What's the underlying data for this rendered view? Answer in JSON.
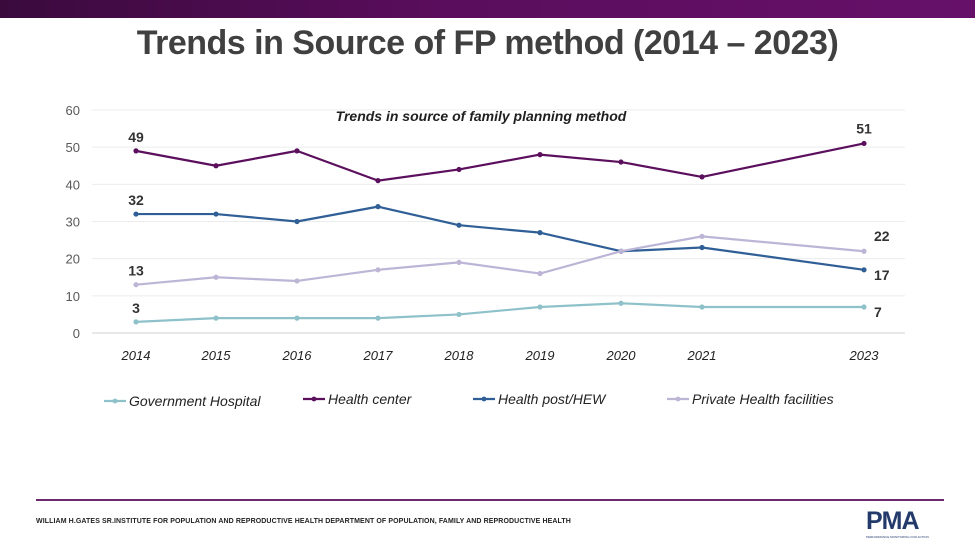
{
  "slide": {
    "title": "Trends in Source of FP method (2014 – 2023)",
    "footer": "WILLIAM H.GATES SR.INSTITUTE FOR POPULATION AND REPRODUCTIVE HEALTH DEPARTMENT OF POPULATION, FAMILY AND REPRODUCTIVE HEALTH",
    "logo_text": "PMA",
    "logo_tagline": "PERFORMANCE MONITORING FOR ACTION"
  },
  "chart_data": {
    "type": "line",
    "title": "Trends in source of family planning method",
    "xlabel": "",
    "ylabel": "",
    "ylim": [
      0,
      60
    ],
    "yticks": [
      0,
      10,
      20,
      30,
      40,
      50,
      60
    ],
    "grid": true,
    "legend_position": "bottom",
    "x": [
      "2014",
      "2015",
      "2016",
      "2017",
      "2018",
      "2019",
      "2020",
      "2021",
      "2023"
    ],
    "series": [
      {
        "name": "Government Hospital",
        "color": "#8ec1c9",
        "values": [
          3,
          4,
          4,
          4,
          5,
          7,
          8,
          7,
          7
        ],
        "labels": {
          "0": "3",
          "8": "7"
        }
      },
      {
        "name": "Health center",
        "color": "#5b0f5d",
        "values": [
          49,
          45,
          49,
          41,
          44,
          48,
          46,
          42,
          51
        ],
        "labels": {
          "0": "49",
          "8": "51"
        }
      },
      {
        "name": "Health post/HEW",
        "color": "#2f5f96",
        "values": [
          32,
          32,
          30,
          34,
          29,
          27,
          22,
          23,
          17
        ],
        "labels": {
          "0": "32",
          "8": "17"
        }
      },
      {
        "name": "Private Health facilities",
        "color": "#bdb5d6",
        "values": [
          13,
          15,
          14,
          17,
          19,
          16,
          22,
          26,
          22
        ],
        "labels": {
          "0": "13",
          "8": "22"
        }
      }
    ]
  }
}
